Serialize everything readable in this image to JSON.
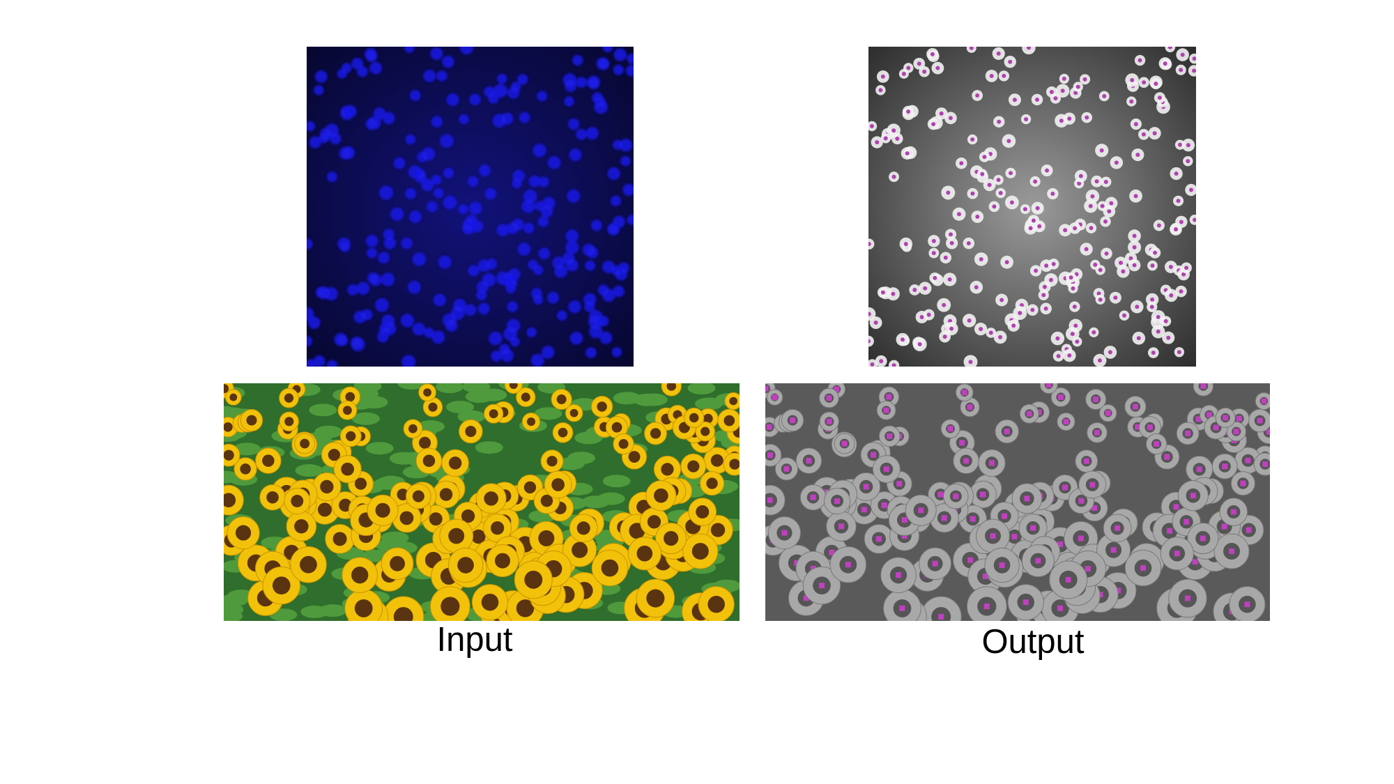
{
  "labels": {
    "input": "Input",
    "output": "Output"
  }
}
